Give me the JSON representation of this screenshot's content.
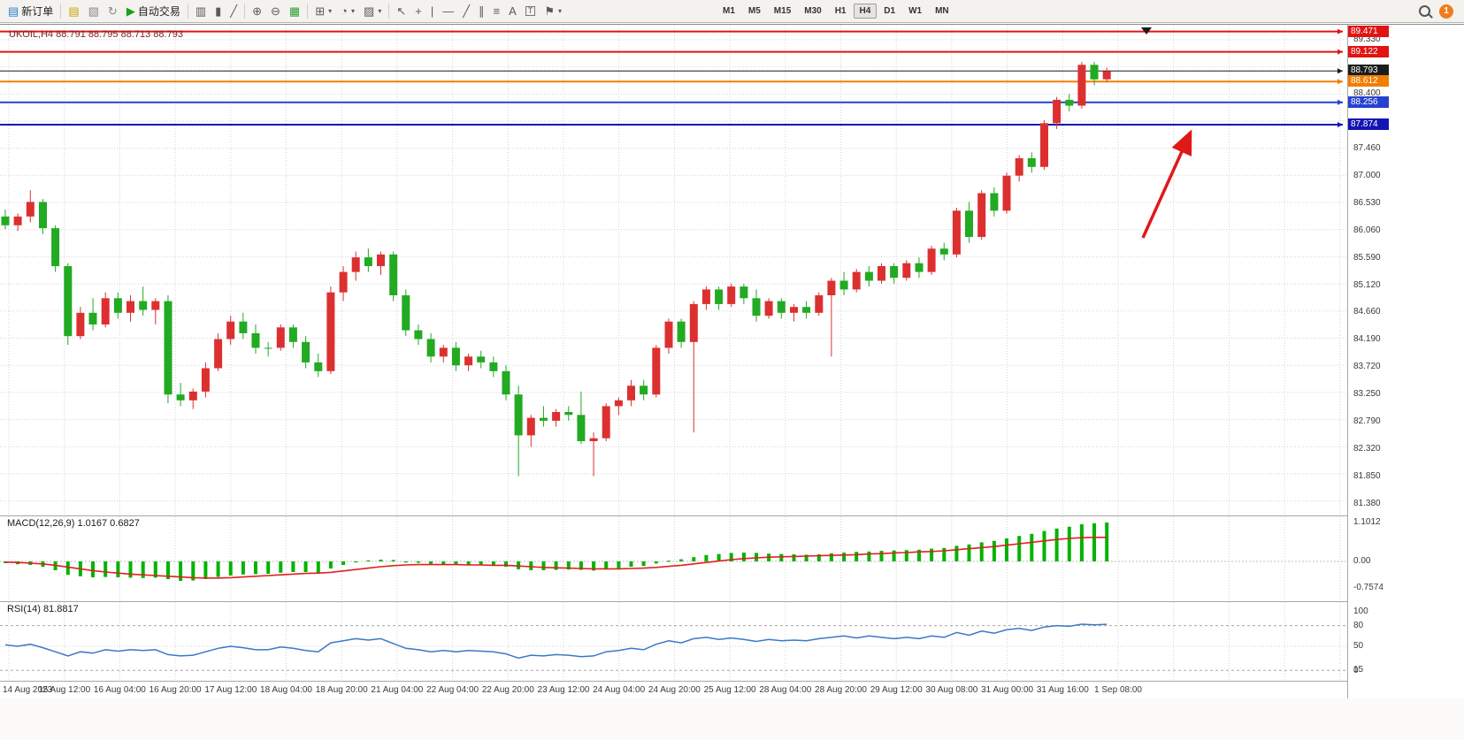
{
  "toolbar": {
    "badge_count": "1",
    "active_timeframe": "H4",
    "timeframes": [
      "M1",
      "M5",
      "M15",
      "M30",
      "H1",
      "H4",
      "D1",
      "W1",
      "MN"
    ],
    "groups": [
      {
        "items": [
          {
            "name": "new-order-button",
            "icon_name": "new-order-icon",
            "glyph": "▤",
            "glyph_color": "#2a7ad2",
            "label": "新订单"
          }
        ]
      },
      {
        "items": [
          {
            "name": "new-chart-icon",
            "glyph": "▤",
            "glyph_color": "#c8a200"
          },
          {
            "name": "profiles-icon",
            "glyph": "▧",
            "glyph_color": "#8a8a8a"
          },
          {
            "name": "refresh-icon",
            "glyph": "↻",
            "glyph_color": "#8a8a8a"
          },
          {
            "name": "autotrading-button",
            "icon_name": "autotrading-icon",
            "glyph": "▶",
            "glyph_color": "#18a018",
            "label": "自动交易"
          }
        ]
      },
      {
        "items": [
          {
            "name": "bar-chart-icon",
            "glyph": "▥"
          },
          {
            "name": "candlestick-chart-icon",
            "glyph": "▮"
          },
          {
            "name": "line-chart-icon",
            "glyph": "╱"
          }
        ]
      },
      {
        "items": [
          {
            "name": "zoom-in-icon",
            "glyph": "⊕"
          },
          {
            "name": "zoom-out-icon",
            "glyph": "⊖"
          },
          {
            "name": "tile-windows-icon",
            "glyph": "▦",
            "glyph_color": "#2f9e2f"
          }
        ]
      },
      {
        "items": [
          {
            "name": "indicators-icon",
            "glyph": "⊞",
            "caret": true
          },
          {
            "name": "periods-icon",
            "glyph": "◔",
            "caret": true
          },
          {
            "name": "templates-icon",
            "glyph": "▨",
            "caret": true
          }
        ]
      },
      {
        "items": [
          {
            "name": "cursor-icon",
            "glyph": "↖"
          },
          {
            "name": "crosshair-icon",
            "glyph": "+"
          },
          {
            "name": "vertical-line-icon",
            "glyph": "|"
          },
          {
            "name": "horizontal-line-icon",
            "glyph": "—"
          },
          {
            "name": "trendline-icon",
            "glyph": "╱"
          },
          {
            "name": "channel-icon",
            "glyph": "∥"
          },
          {
            "name": "fibonacci-icon",
            "glyph": "≡"
          },
          {
            "name": "text-icon",
            "glyph": "A"
          },
          {
            "name": "text-label-icon",
            "glyph": "T",
            "boxed": true
          },
          {
            "name": "arrows-icon",
            "glyph": "⚑",
            "caret": true
          }
        ]
      }
    ]
  },
  "chart_header": {
    "symbol_info": "UKOIL,H4  88.791 88.795 88.713 88.793"
  },
  "price_scale": {
    "gridline_labels": [
      {
        "text": "89.330",
        "price": 89.33
      },
      {
        "text": "88.400",
        "price": 88.4
      },
      {
        "text": "87.460",
        "price": 87.46
      },
      {
        "text": "87.000",
        "price": 87.0
      },
      {
        "text": "86.530",
        "price": 86.53
      },
      {
        "text": "86.060",
        "price": 86.06
      },
      {
        "text": "85.590",
        "price": 85.59
      },
      {
        "text": "85.120",
        "price": 85.12
      },
      {
        "text": "84.660",
        "price": 84.66
      },
      {
        "text": "84.190",
        "price": 84.19
      },
      {
        "text": "83.720",
        "price": 83.72
      },
      {
        "text": "83.250",
        "price": 83.25
      },
      {
        "text": "82.790",
        "price": 82.79
      },
      {
        "text": "82.320",
        "price": 82.32
      },
      {
        "text": "81.850",
        "price": 81.85
      },
      {
        "text": "81.380",
        "price": 81.38
      }
    ]
  },
  "chart_data": {
    "type": "candlestick",
    "symbol": "UKOIL",
    "timeframe": "H4",
    "price_axis": {
      "min": 81.2,
      "max": 89.5,
      "grid_step": 0.465,
      "grid_top": 89.33,
      "grid_lines": 18
    },
    "time_labels": [
      "14 Aug 2023",
      "15 Aug 12:00",
      "16 Aug 04:00",
      "16 Aug 20:00",
      "17 Aug 12:00",
      "18 Aug 04:00",
      "18 Aug 20:00",
      "21 Aug 04:00",
      "22 Aug 04:00",
      "22 Aug 20:00",
      "23 Aug 12:00",
      "24 Aug 04:00",
      "24 Aug 20:00",
      "25 Aug 12:00",
      "28 Aug 04:00",
      "28 Aug 20:00",
      "29 Aug 12:00",
      "30 Aug 08:00",
      "31 Aug 00:00",
      "31 Aug 16:00",
      "1 Sep 08:00"
    ],
    "candles": [
      [
        86.3,
        86.42,
        86.08,
        86.15
      ],
      [
        86.15,
        86.35,
        86.05,
        86.3
      ],
      [
        86.3,
        86.75,
        86.2,
        86.55
      ],
      [
        86.55,
        86.6,
        86.0,
        86.1
      ],
      [
        86.1,
        86.15,
        85.35,
        85.45
      ],
      [
        85.45,
        85.5,
        84.1,
        84.25
      ],
      [
        84.25,
        84.75,
        84.2,
        84.65
      ],
      [
        84.65,
        84.9,
        84.35,
        84.45
      ],
      [
        84.45,
        85.0,
        84.4,
        84.9
      ],
      [
        84.9,
        85.0,
        84.55,
        84.65
      ],
      [
        84.65,
        84.95,
        84.5,
        84.85
      ],
      [
        84.85,
        85.1,
        84.6,
        84.7
      ],
      [
        84.7,
        84.9,
        84.45,
        84.85
      ],
      [
        84.85,
        84.95,
        83.1,
        83.25
      ],
      [
        83.25,
        83.45,
        83.05,
        83.15
      ],
      [
        83.15,
        83.35,
        83.0,
        83.3
      ],
      [
        83.3,
        83.8,
        83.2,
        83.7
      ],
      [
        83.7,
        84.3,
        83.65,
        84.2
      ],
      [
        84.2,
        84.6,
        84.1,
        84.5
      ],
      [
        84.5,
        84.65,
        84.2,
        84.3
      ],
      [
        84.3,
        84.45,
        83.95,
        84.05
      ],
      [
        84.05,
        84.15,
        83.9,
        84.05
      ],
      [
        84.05,
        84.45,
        84.0,
        84.4
      ],
      [
        84.4,
        84.45,
        84.05,
        84.15
      ],
      [
        84.15,
        84.25,
        83.7,
        83.8
      ],
      [
        83.8,
        83.95,
        83.55,
        83.65
      ],
      [
        83.65,
        85.1,
        83.6,
        85.0
      ],
      [
        85.0,
        85.45,
        84.85,
        85.35
      ],
      [
        85.35,
        85.7,
        85.2,
        85.6
      ],
      [
        85.6,
        85.75,
        85.35,
        85.45
      ],
      [
        85.45,
        85.7,
        85.3,
        85.65
      ],
      [
        85.65,
        85.7,
        84.85,
        84.95
      ],
      [
        84.95,
        85.05,
        84.25,
        84.35
      ],
      [
        84.35,
        84.45,
        84.1,
        84.2
      ],
      [
        84.2,
        84.3,
        83.8,
        83.9
      ],
      [
        83.9,
        84.1,
        83.8,
        84.05
      ],
      [
        84.05,
        84.15,
        83.65,
        83.75
      ],
      [
        83.75,
        83.95,
        83.65,
        83.9
      ],
      [
        83.9,
        84.0,
        83.7,
        83.8
      ],
      [
        83.8,
        83.9,
        83.55,
        83.65
      ],
      [
        83.65,
        83.75,
        83.15,
        83.25
      ],
      [
        83.25,
        83.4,
        81.85,
        82.55
      ],
      [
        82.55,
        82.9,
        82.35,
        82.85
      ],
      [
        82.85,
        83.05,
        82.7,
        82.8
      ],
      [
        82.8,
        83.0,
        82.7,
        82.95
      ],
      [
        82.95,
        83.05,
        82.8,
        82.9
      ],
      [
        82.9,
        83.3,
        82.4,
        82.45
      ],
      [
        82.45,
        82.6,
        81.85,
        82.5
      ],
      [
        82.5,
        83.1,
        82.45,
        83.05
      ],
      [
        83.05,
        83.2,
        82.9,
        83.15
      ],
      [
        83.15,
        83.5,
        83.05,
        83.4
      ],
      [
        83.4,
        83.5,
        83.15,
        83.25
      ],
      [
        83.25,
        84.1,
        83.2,
        84.05
      ],
      [
        84.05,
        84.55,
        83.95,
        84.5
      ],
      [
        84.5,
        84.55,
        84.05,
        84.15
      ],
      [
        84.15,
        84.85,
        82.6,
        84.8
      ],
      [
        84.8,
        85.1,
        84.7,
        85.05
      ],
      [
        85.05,
        85.1,
        84.7,
        84.8
      ],
      [
        84.8,
        85.15,
        84.75,
        85.1
      ],
      [
        85.1,
        85.15,
        84.8,
        84.9
      ],
      [
        84.9,
        85.05,
        84.5,
        84.6
      ],
      [
        84.6,
        84.9,
        84.55,
        84.85
      ],
      [
        84.85,
        84.9,
        84.55,
        84.65
      ],
      [
        84.65,
        84.8,
        84.5,
        84.75
      ],
      [
        84.75,
        84.85,
        84.55,
        84.65
      ],
      [
        84.65,
        85.0,
        84.6,
        84.95
      ],
      [
        84.95,
        85.25,
        83.9,
        85.2
      ],
      [
        85.2,
        85.35,
        84.95,
        85.05
      ],
      [
        85.05,
        85.4,
        85.0,
        85.35
      ],
      [
        85.35,
        85.45,
        85.1,
        85.2
      ],
      [
        85.2,
        85.5,
        85.15,
        85.45
      ],
      [
        85.45,
        85.5,
        85.15,
        85.25
      ],
      [
        85.25,
        85.55,
        85.2,
        85.5
      ],
      [
        85.5,
        85.6,
        85.25,
        85.35
      ],
      [
        85.35,
        85.8,
        85.3,
        85.75
      ],
      [
        85.75,
        85.85,
        85.55,
        85.65
      ],
      [
        85.65,
        86.45,
        85.6,
        86.4
      ],
      [
        86.4,
        86.55,
        85.85,
        85.95
      ],
      [
        85.95,
        86.75,
        85.9,
        86.7
      ],
      [
        86.7,
        86.8,
        86.3,
        86.4
      ],
      [
        86.4,
        87.05,
        86.35,
        87.0
      ],
      [
        87.0,
        87.35,
        86.9,
        87.3
      ],
      [
        87.3,
        87.4,
        87.05,
        87.15
      ],
      [
        87.15,
        87.95,
        87.1,
        87.9
      ],
      [
        87.9,
        88.35,
        87.8,
        88.3
      ],
      [
        88.3,
        88.4,
        88.1,
        88.2
      ],
      [
        88.2,
        88.95,
        88.15,
        88.9
      ],
      [
        88.9,
        88.95,
        88.55,
        88.65
      ],
      [
        88.65,
        88.85,
        88.6,
        88.79
      ]
    ],
    "levels": [
      {
        "label": "89.471",
        "price": 89.471,
        "color": "#e11414",
        "line_width": 2
      },
      {
        "label": "89.122",
        "price": 89.122,
        "color": "#e11414",
        "line_width": 2
      },
      {
        "label": "88.793",
        "price": 88.793,
        "color": "#1c1c1c",
        "line_width": 1
      },
      {
        "label": "88.612",
        "price": 88.612,
        "color": "#f07f00",
        "line_width": 2
      },
      {
        "label": "88.256",
        "price": 88.256,
        "color": "#2742cf",
        "line_width": 2
      },
      {
        "label": "87.874",
        "price": 87.874,
        "color": "#1515b4",
        "line_width": 2
      }
    ],
    "indicators": {
      "macd": {
        "name": "MACD(12,26,9)",
        "value": "1.0167",
        "signal_value": "0.6827",
        "display": "MACD(12,26,9) 1.0167 0.6827",
        "scale_labels": [
          {
            "text": "1.1012",
            "v": 1.1012
          },
          {
            "text": "0.00",
            "v": 0
          },
          {
            "text": "-0.7574",
            "v": -0.7574
          }
        ],
        "hist": [
          -0.05,
          -0.08,
          -0.1,
          -0.15,
          -0.25,
          -0.38,
          -0.42,
          -0.45,
          -0.44,
          -0.45,
          -0.46,
          -0.47,
          -0.46,
          -0.5,
          -0.55,
          -0.54,
          -0.5,
          -0.44,
          -0.4,
          -0.37,
          -0.36,
          -0.35,
          -0.32,
          -0.3,
          -0.3,
          -0.32,
          -0.2,
          -0.1,
          -0.02,
          0.03,
          0.05,
          0.04,
          0.0,
          -0.04,
          -0.07,
          -0.08,
          -0.1,
          -0.1,
          -0.11,
          -0.12,
          -0.15,
          -0.22,
          -0.25,
          -0.25,
          -0.24,
          -0.23,
          -0.24,
          -0.26,
          -0.23,
          -0.19,
          -0.15,
          -0.13,
          -0.06,
          0.02,
          0.06,
          0.12,
          0.18,
          0.21,
          0.24,
          0.25,
          0.24,
          0.22,
          0.21,
          0.2,
          0.19,
          0.2,
          0.23,
          0.25,
          0.27,
          0.28,
          0.3,
          0.31,
          0.32,
          0.33,
          0.36,
          0.38,
          0.44,
          0.48,
          0.54,
          0.58,
          0.65,
          0.72,
          0.78,
          0.86,
          0.93,
          0.98,
          1.05,
          1.08,
          1.1
        ],
        "signal": [
          -0.02,
          -0.03,
          -0.05,
          -0.07,
          -0.11,
          -0.16,
          -0.21,
          -0.26,
          -0.3,
          -0.33,
          -0.36,
          -0.38,
          -0.4,
          -0.42,
          -0.44,
          -0.46,
          -0.47,
          -0.47,
          -0.46,
          -0.44,
          -0.42,
          -0.4,
          -0.38,
          -0.36,
          -0.34,
          -0.33,
          -0.31,
          -0.27,
          -0.23,
          -0.19,
          -0.15,
          -0.12,
          -0.1,
          -0.09,
          -0.09,
          -0.09,
          -0.09,
          -0.1,
          -0.1,
          -0.11,
          -0.11,
          -0.13,
          -0.15,
          -0.17,
          -0.18,
          -0.19,
          -0.2,
          -0.21,
          -0.21,
          -0.21,
          -0.2,
          -0.19,
          -0.17,
          -0.14,
          -0.11,
          -0.07,
          -0.03,
          0.01,
          0.05,
          0.08,
          0.1,
          0.12,
          0.13,
          0.14,
          0.15,
          0.16,
          0.17,
          0.18,
          0.19,
          0.21,
          0.22,
          0.24,
          0.25,
          0.27,
          0.28,
          0.3,
          0.33,
          0.36,
          0.39,
          0.42,
          0.46,
          0.5,
          0.54,
          0.58,
          0.62,
          0.65,
          0.67,
          0.68,
          0.68
        ]
      },
      "rsi": {
        "name": "RSI(14)",
        "value": "81.8817",
        "display": "RSI(14) 81.8817",
        "scale_labels": [
          {
            "text": "100",
            "v": 100
          },
          {
            "text": "80",
            "v": 80
          },
          {
            "text": "50",
            "v": 50
          },
          {
            "text": "15",
            "v": 15
          },
          {
            "text": "0",
            "v": 0
          }
        ],
        "levels_dashed": [
          80,
          15
        ],
        "level_dotted": 50,
        "values": [
          52,
          50,
          53,
          48,
          42,
          36,
          42,
          40,
          45,
          43,
          45,
          44,
          45,
          38,
          36,
          37,
          42,
          47,
          50,
          48,
          45,
          45,
          49,
          47,
          44,
          42,
          55,
          58,
          61,
          59,
          61,
          54,
          47,
          45,
          42,
          44,
          42,
          44,
          43,
          42,
          39,
          33,
          37,
          36,
          38,
          37,
          35,
          36,
          42,
          44,
          47,
          45,
          53,
          58,
          55,
          61,
          63,
          60,
          62,
          60,
          57,
          60,
          58,
          59,
          58,
          61,
          63,
          65,
          62,
          65,
          63,
          61,
          63,
          61,
          65,
          63,
          70,
          66,
          72,
          69,
          74,
          76,
          73,
          78,
          80,
          79,
          82,
          81,
          81.9
        ]
      }
    },
    "annotations": {
      "arrow": {
        "from": [
          1292,
          241
        ],
        "to": [
          1343,
          128
        ],
        "color": "#e01818"
      }
    }
  },
  "colors": {
    "up": "#dc3030",
    "down": "#22aa22",
    "grid": "#d4d4d4",
    "macd_hist": "#00b400",
    "macd_signal": "#e02020",
    "rsi_line": "#3b78c8",
    "current_price_box": "#1c1c1c"
  }
}
